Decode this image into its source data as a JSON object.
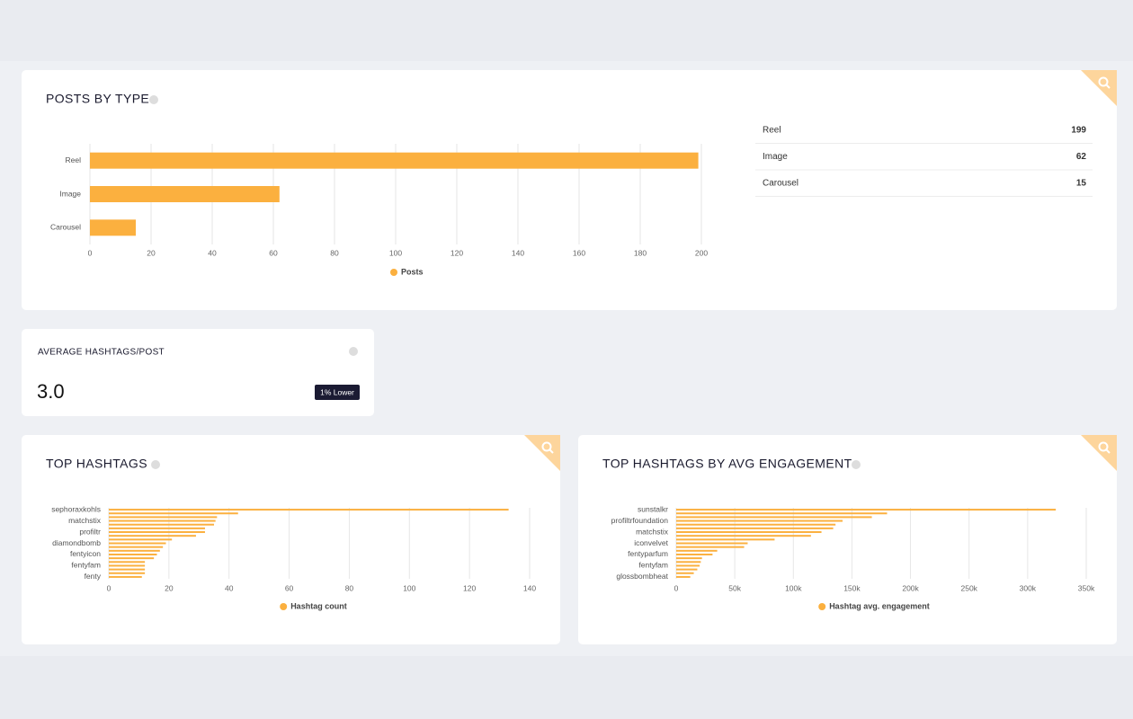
{
  "chart_data": [
    {
      "type": "hbar",
      "title": "POSTS BY TYPE",
      "categories": [
        "Reel",
        "Image",
        "Carousel"
      ],
      "series": [
        {
          "name": "Posts",
          "color": "#fbb03f",
          "values": [
            199,
            62,
            15
          ]
        }
      ],
      "xlim": [
        0,
        210
      ],
      "xticks": [
        0,
        20,
        40,
        60,
        80,
        100,
        120,
        140,
        160,
        180,
        200
      ],
      "grid": true,
      "legend": "bottom"
    },
    {
      "type": "hbar",
      "title": "TOP HASHTAGS",
      "categories": [
        "sephoraxkohls",
        null,
        null,
        "matchstix",
        null,
        null,
        "profiltr",
        null,
        null,
        "diamondbomb",
        null,
        null,
        "fentyicon",
        null,
        null,
        "fentyfam",
        null,
        null,
        "fenty"
      ],
      "series": [
        {
          "name": "Hashtag count",
          "color": "#fbb03f",
          "values": [
            133,
            43,
            36,
            35.5,
            35,
            32,
            32,
            29,
            21,
            19,
            18,
            17,
            16,
            15,
            12,
            12,
            12,
            12,
            11
          ]
        }
      ],
      "xlim": [
        0,
        140
      ],
      "xticks": [
        0,
        20,
        40,
        60,
        80,
        100,
        120,
        140
      ],
      "grid": true,
      "legend": "bottom"
    },
    {
      "type": "hbar",
      "title": "TOP HASHTAGS BY AVG ENGAGEMENT",
      "categories": [
        "sunstalkr",
        null,
        null,
        "profiltrfoundation",
        null,
        null,
        "matchstix",
        null,
        null,
        "iconvelvet",
        null,
        null,
        "fentyparfum",
        null,
        null,
        "fentyfam",
        null,
        null,
        "glossbombheat"
      ],
      "series": [
        {
          "name": "Hashtag avg. engagement",
          "color": "#fbb03f",
          "values": [
            324000,
            180000,
            167000,
            142000,
            136000,
            134000,
            124000,
            115000,
            84000,
            61000,
            58000,
            35000,
            31000,
            22000,
            21000,
            20000,
            18000,
            15000,
            12000
          ]
        }
      ],
      "xlim": [
        0,
        350000
      ],
      "xticks": [
        0,
        {
          "value": 50000,
          "label": "50k"
        },
        {
          "value": 100000,
          "label": "100k"
        },
        {
          "value": 150000,
          "label": "150k"
        },
        {
          "value": 200000,
          "label": "200k"
        },
        {
          "value": 250000,
          "label": "250k"
        },
        {
          "value": 300000,
          "label": "300k"
        },
        {
          "value": 350000,
          "label": "350k"
        }
      ],
      "grid": true,
      "legend": "bottom"
    }
  ],
  "table": {
    "rows": [
      [
        "Reel",
        "199"
      ],
      [
        "Image",
        "62"
      ],
      [
        "Carousel",
        "15"
      ]
    ]
  },
  "kpi": {
    "title": "AVERAGE HASHTAGS/POST",
    "value": "3.0",
    "badge": "1% Lower"
  }
}
